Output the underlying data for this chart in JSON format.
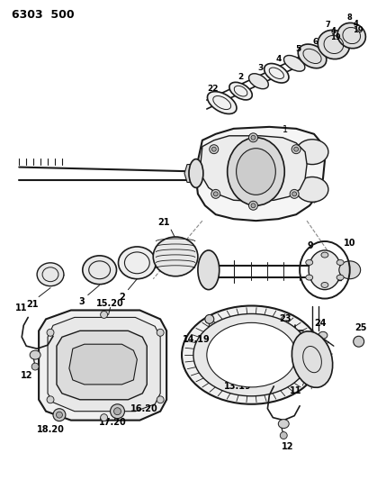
{
  "title": "6303  500",
  "bg_color": "#ffffff",
  "line_color": "#1a1a1a",
  "fig_width": 4.1,
  "fig_height": 5.33,
  "dpi": 100
}
